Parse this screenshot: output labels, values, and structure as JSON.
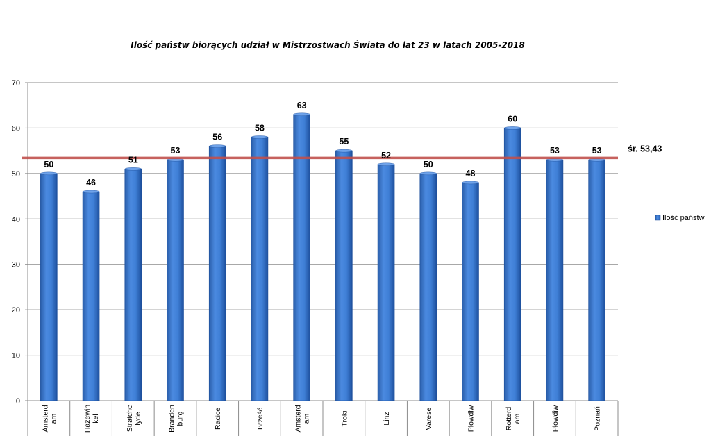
{
  "chart_data": {
    "type": "bar",
    "title": "Ilość państw biorących udział w Mistrzostwach Świata do lat 23 w latach 2005-2018",
    "categories": [
      [
        "Amsterd",
        "am"
      ],
      [
        "Hazewin",
        "kel"
      ],
      [
        "Stratchc",
        "lyde"
      ],
      [
        "Branden",
        "burg"
      ],
      [
        "Racice"
      ],
      [
        "Brześć"
      ],
      [
        "Amsterd",
        "am"
      ],
      [
        "Troki"
      ],
      [
        "Linz"
      ],
      [
        "Varese"
      ],
      [
        "Płowdiw"
      ],
      [
        "Rotterd",
        "am"
      ],
      [
        "Płowdiw"
      ],
      [
        "Poznań"
      ]
    ],
    "series": [
      {
        "name": "Ilość państw",
        "values": [
          50,
          46,
          51,
          53,
          56,
          58,
          63,
          55,
          52,
          50,
          48,
          60,
          53,
          53
        ]
      }
    ],
    "ylim": [
      0,
      70
    ],
    "yticks": [
      0,
      10,
      20,
      30,
      40,
      50,
      60,
      70
    ],
    "grid": true,
    "legend_position": "right",
    "average": {
      "value": 53.43,
      "label": "śr. 53,43",
      "color": "#c0504d"
    },
    "bar_color": "#3f7fd6",
    "bar_color_dark": "#1d4f9c"
  }
}
